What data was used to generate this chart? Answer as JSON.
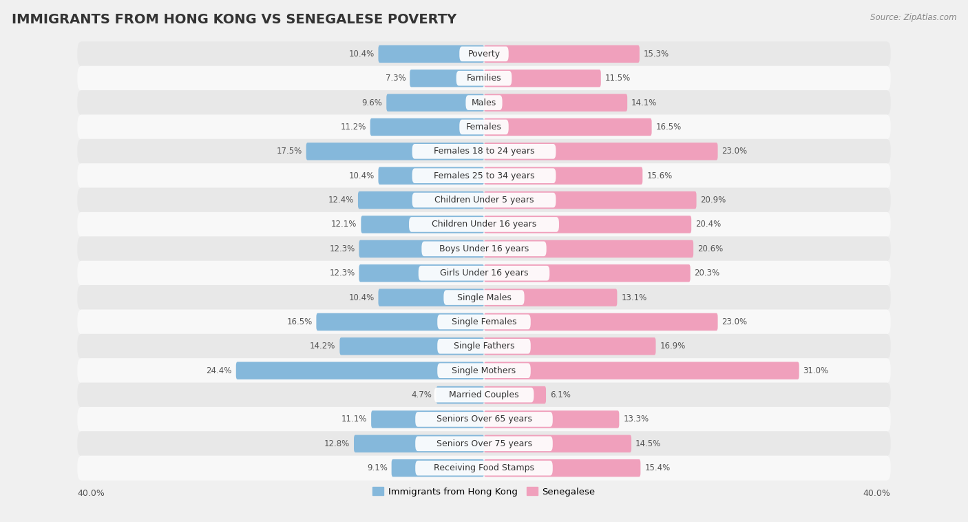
{
  "title": "IMMIGRANTS FROM HONG KONG VS SENEGALESE POVERTY",
  "source": "Source: ZipAtlas.com",
  "categories": [
    "Poverty",
    "Families",
    "Males",
    "Females",
    "Females 18 to 24 years",
    "Females 25 to 34 years",
    "Children Under 5 years",
    "Children Under 16 years",
    "Boys Under 16 years",
    "Girls Under 16 years",
    "Single Males",
    "Single Females",
    "Single Fathers",
    "Single Mothers",
    "Married Couples",
    "Seniors Over 65 years",
    "Seniors Over 75 years",
    "Receiving Food Stamps"
  ],
  "hong_kong_values": [
    10.4,
    7.3,
    9.6,
    11.2,
    17.5,
    10.4,
    12.4,
    12.1,
    12.3,
    12.3,
    10.4,
    16.5,
    14.2,
    24.4,
    4.7,
    11.1,
    12.8,
    9.1
  ],
  "senegalese_values": [
    15.3,
    11.5,
    14.1,
    16.5,
    23.0,
    15.6,
    20.9,
    20.4,
    20.6,
    20.3,
    13.1,
    23.0,
    16.9,
    31.0,
    6.1,
    13.3,
    14.5,
    15.4
  ],
  "hong_kong_color": "#85b8db",
  "senegalese_color": "#f0a0bc",
  "hong_kong_label": "Immigrants from Hong Kong",
  "senegalese_label": "Senegalese",
  "xlim": 40.0,
  "bar_height": 0.72,
  "background_color": "#f0f0f0",
  "row_odd_color": "#e8e8e8",
  "row_even_color": "#f8f8f8",
  "title_fontsize": 14,
  "cat_fontsize": 9,
  "value_fontsize": 8.5,
  "legend_fontsize": 9.5
}
